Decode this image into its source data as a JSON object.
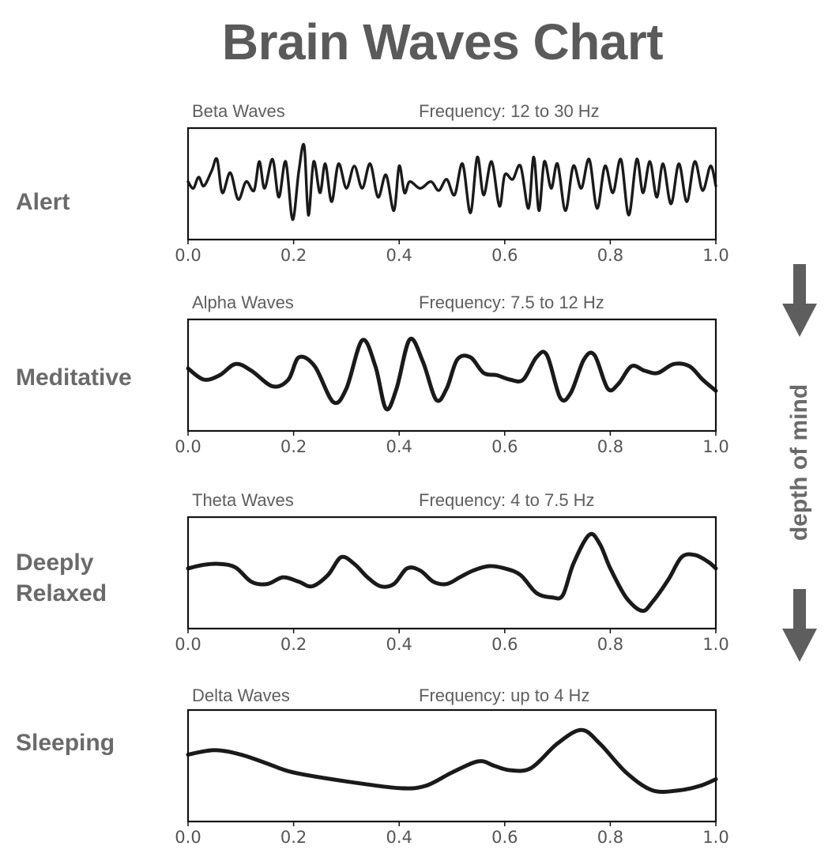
{
  "title": "Brain Waves Chart",
  "side_label": "depth of mind",
  "colors": {
    "text": "#5e5e5e",
    "line": "#1a1a1a",
    "arrow": "#5e5e5e"
  },
  "chart_data": [
    {
      "type": "line",
      "state": "Alert",
      "title": "Beta Waves",
      "subtitle": "Frequency: 12 to 30 Hz",
      "xlim": [
        0,
        1
      ],
      "xticks": [
        "0.0",
        "0.2",
        "0.4",
        "0.6",
        "0.8",
        "1.0"
      ],
      "ylim": [
        -1,
        1
      ],
      "grid": false,
      "x": [
        0,
        0.01,
        0.02,
        0.03,
        0.045,
        0.055,
        0.065,
        0.08,
        0.095,
        0.11,
        0.125,
        0.135,
        0.145,
        0.16,
        0.172,
        0.185,
        0.198,
        0.21,
        0.22,
        0.228,
        0.238,
        0.25,
        0.26,
        0.272,
        0.285,
        0.3,
        0.315,
        0.33,
        0.345,
        0.36,
        0.375,
        0.39,
        0.4,
        0.41,
        0.42,
        0.44,
        0.46,
        0.475,
        0.49,
        0.505,
        0.52,
        0.535,
        0.548,
        0.56,
        0.575,
        0.59,
        0.6,
        0.615,
        0.63,
        0.645,
        0.655,
        0.665,
        0.675,
        0.688,
        0.7,
        0.715,
        0.73,
        0.745,
        0.76,
        0.775,
        0.79,
        0.805,
        0.82,
        0.835,
        0.85,
        0.862,
        0.875,
        0.888,
        0.9,
        0.915,
        0.93,
        0.945,
        0.96,
        0.975,
        0.99,
        1.0
      ],
      "y": [
        0.05,
        -0.1,
        0.15,
        -0.05,
        0.3,
        0.55,
        -0.2,
        0.25,
        -0.35,
        0.05,
        -0.15,
        0.5,
        -0.1,
        0.55,
        -0.3,
        0.5,
        -0.8,
        0.3,
        0.85,
        -0.7,
        0.5,
        -0.2,
        0.45,
        -0.4,
        0.45,
        -0.1,
        0.4,
        -0.1,
        0.45,
        -0.3,
        0.2,
        -0.6,
        0.4,
        -0.2,
        0.05,
        -0.1,
        0.05,
        -0.15,
        0.1,
        -0.25,
        0.45,
        -0.65,
        0.6,
        -0.25,
        0.5,
        -0.5,
        0.2,
        0.1,
        0.4,
        -0.55,
        0.6,
        -0.6,
        0.5,
        -0.1,
        0.45,
        -0.6,
        0.4,
        -0.1,
        0.55,
        -0.55,
        0.4,
        -0.2,
        0.55,
        -0.7,
        0.55,
        -0.2,
        0.5,
        -0.3,
        0.45,
        -0.45,
        0.45,
        -0.4,
        0.5,
        -0.15,
        0.4,
        -0.05
      ]
    },
    {
      "type": "line",
      "state": "Meditative",
      "title": "Alpha Waves",
      "subtitle": "Frequency: 7.5 to 12 Hz",
      "xlim": [
        0,
        1
      ],
      "xticks": [
        "0.0",
        "0.2",
        "0.4",
        "0.6",
        "0.8",
        "1.0"
      ],
      "ylim": [
        -1,
        1
      ],
      "grid": false,
      "x": [
        0,
        0.03,
        0.06,
        0.09,
        0.12,
        0.16,
        0.19,
        0.21,
        0.24,
        0.275,
        0.3,
        0.33,
        0.355,
        0.375,
        0.395,
        0.42,
        0.445,
        0.47,
        0.49,
        0.51,
        0.535,
        0.56,
        0.585,
        0.61,
        0.635,
        0.66,
        0.68,
        0.705,
        0.725,
        0.75,
        0.77,
        0.795,
        0.815,
        0.84,
        0.865,
        0.89,
        0.92,
        0.95,
        0.975,
        1.0
      ],
      "y": [
        0.15,
        -0.1,
        0.0,
        0.25,
        0.1,
        -0.25,
        -0.1,
        0.4,
        0.2,
        -0.6,
        -0.3,
        0.78,
        0.2,
        -0.75,
        -0.3,
        0.8,
        0.3,
        -0.55,
        -0.3,
        0.35,
        0.4,
        0.05,
        0.0,
        -0.1,
        -0.1,
        0.4,
        0.45,
        -0.5,
        -0.4,
        0.35,
        0.45,
        -0.3,
        -0.2,
        0.2,
        0.1,
        0.05,
        0.25,
        0.2,
        -0.1,
        -0.35
      ]
    },
    {
      "type": "line",
      "state": "Deeply Relaxed",
      "title": "Theta Waves",
      "subtitle": "Frequency: 4 to 7.5 Hz",
      "xlim": [
        0,
        1
      ],
      "xticks": [
        "0.0",
        "0.2",
        "0.4",
        "0.6",
        "0.8",
        "1.0"
      ],
      "ylim": [
        -1,
        1
      ],
      "grid": false,
      "x": [
        0,
        0.03,
        0.06,
        0.09,
        0.12,
        0.15,
        0.18,
        0.21,
        0.235,
        0.265,
        0.29,
        0.315,
        0.34,
        0.365,
        0.39,
        0.415,
        0.44,
        0.465,
        0.49,
        0.515,
        0.54,
        0.57,
        0.6,
        0.63,
        0.66,
        0.69,
        0.71,
        0.73,
        0.76,
        0.78,
        0.8,
        0.83,
        0.86,
        0.88,
        0.91,
        0.935,
        0.96,
        0.985,
        1.0
      ],
      "y": [
        0.1,
        0.18,
        0.2,
        0.12,
        -0.2,
        -0.25,
        -0.1,
        -0.2,
        -0.3,
        -0.05,
        0.35,
        0.2,
        -0.1,
        -0.3,
        -0.25,
        0.1,
        0.05,
        -0.2,
        -0.25,
        -0.1,
        0.05,
        0.15,
        0.1,
        -0.05,
        -0.45,
        -0.55,
        -0.5,
        0.2,
        0.85,
        0.65,
        0.1,
        -0.55,
        -0.85,
        -0.65,
        -0.15,
        0.35,
        0.4,
        0.25,
        0.1
      ]
    },
    {
      "type": "line",
      "state": "Sleeping",
      "title": "Delta Waves",
      "subtitle": "Frequency: up to 4 Hz",
      "xlim": [
        0,
        1
      ],
      "xticks": [
        "0.0",
        "0.2",
        "0.4",
        "0.6",
        "0.8",
        "1.0"
      ],
      "ylim": [
        -1,
        1
      ],
      "grid": false,
      "x": [
        0,
        0.05,
        0.1,
        0.15,
        0.2,
        0.3,
        0.4,
        0.45,
        0.5,
        0.55,
        0.58,
        0.61,
        0.65,
        0.7,
        0.745,
        0.78,
        0.83,
        0.88,
        0.93,
        0.97,
        1.0
      ],
      "y": [
        0.25,
        0.35,
        0.25,
        0.05,
        -0.15,
        -0.35,
        -0.5,
        -0.45,
        -0.15,
        0.1,
        0.0,
        -0.1,
        -0.05,
        0.5,
        0.8,
        0.5,
        -0.15,
        -0.55,
        -0.55,
        -0.45,
        -0.3
      ]
    }
  ]
}
